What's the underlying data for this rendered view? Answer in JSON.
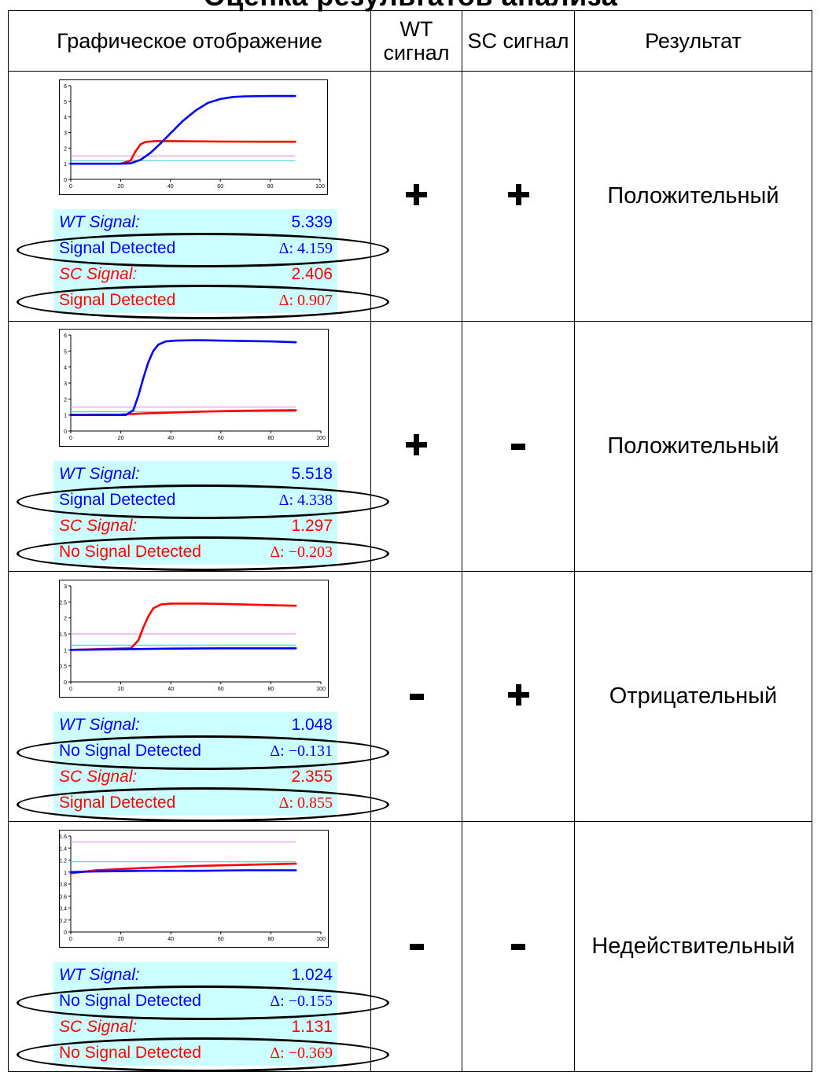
{
  "title": "Оценка результатов анализа",
  "headers": {
    "graph": "Графическое отображение",
    "wt": "WT сигнал",
    "sc": "SC сигнал",
    "result": "Результат"
  },
  "rows": [
    {
      "wt_symbol": "+",
      "sc_symbol": "+",
      "result": "Положительный",
      "wt_label": "WT Signal:",
      "wt_value": "5.339",
      "wt_status": "Signal Detected",
      "wt_delta": "Δ: 4.159",
      "sc_label": "SC Signal:",
      "sc_value": "2.406",
      "sc_status": "Signal Detected",
      "sc_delta": "Δ: 0.907"
    },
    {
      "wt_symbol": "+",
      "sc_symbol": "-",
      "result": "Положительный",
      "wt_label": "WT Signal:",
      "wt_value": "5.518",
      "wt_status": "Signal Detected",
      "wt_delta": "Δ: 4.338",
      "sc_label": "SC Signal:",
      "sc_value": "1.297",
      "sc_status": "No Signal Detected",
      "sc_delta": "Δ: −0.203"
    },
    {
      "wt_symbol": "-",
      "sc_symbol": "+",
      "result": "Отрицательный",
      "wt_label": "WT Signal:",
      "wt_value": "1.048",
      "wt_status": "No Signal Detected",
      "wt_delta": "Δ: −0.131",
      "sc_label": "SC Signal:",
      "sc_value": "2.355",
      "sc_status": "Signal Detected",
      "sc_delta": "Δ: 0.855"
    },
    {
      "wt_symbol": "-",
      "sc_symbol": "-",
      "result": "Недействительный",
      "wt_label": "WT Signal:",
      "wt_value": "1.024",
      "wt_status": "No Signal Detected",
      "wt_delta": "Δ: −0.155",
      "sc_label": "SC Signal:",
      "sc_value": "1.131",
      "sc_status": "No Signal Detected",
      "sc_delta": "Δ: −0.369"
    }
  ],
  "colors": {
    "wt": "#0000ff",
    "sc": "#ff0000",
    "panel": "#ccffff",
    "threshold_pink": "#e08ae0",
    "threshold_cyan": "#33cccc"
  },
  "chart_data": [
    {
      "type": "line",
      "xlim": [
        0,
        100
      ],
      "ylim": [
        0,
        6
      ],
      "x_ticks": [
        0,
        20,
        40,
        60,
        80,
        100
      ],
      "y_ticks": [
        0,
        1,
        2,
        3,
        4,
        5,
        6
      ],
      "thresholds": [
        1.5,
        1.2
      ],
      "series": [
        {
          "color": "#0000ff",
          "x": [
            0,
            20,
            24,
            28,
            32,
            36,
            40,
            45,
            50,
            55,
            60,
            65,
            70,
            80,
            90
          ],
          "y": [
            1.0,
            1.0,
            1.03,
            1.25,
            1.7,
            2.3,
            2.95,
            3.75,
            4.4,
            4.9,
            5.15,
            5.28,
            5.32,
            5.34,
            5.34
          ]
        },
        {
          "color": "#ff0000",
          "x": [
            0,
            20,
            24,
            26,
            28,
            30,
            34,
            40,
            60,
            80,
            90
          ],
          "y": [
            1.0,
            1.0,
            1.2,
            1.8,
            2.25,
            2.4,
            2.45,
            2.45,
            2.42,
            2.41,
            2.41
          ]
        }
      ]
    },
    {
      "type": "line",
      "xlim": [
        0,
        100
      ],
      "ylim": [
        0,
        6
      ],
      "x_ticks": [
        0,
        20,
        40,
        60,
        80,
        100
      ],
      "y_ticks": [
        0,
        1,
        2,
        3,
        4,
        5,
        6
      ],
      "thresholds": [
        1.5,
        1.2
      ],
      "series": [
        {
          "color": "#0000ff",
          "x": [
            0,
            22,
            25,
            27,
            29,
            31,
            33,
            35,
            38,
            42,
            50,
            60,
            80,
            90
          ],
          "y": [
            1.0,
            1.0,
            1.3,
            2.2,
            3.3,
            4.3,
            5.0,
            5.4,
            5.6,
            5.65,
            5.68,
            5.65,
            5.6,
            5.55
          ]
        },
        {
          "color": "#ff0000",
          "x": [
            0,
            20,
            30,
            40,
            50,
            60,
            70,
            80,
            90
          ],
          "y": [
            1.02,
            1.03,
            1.1,
            1.15,
            1.2,
            1.24,
            1.27,
            1.29,
            1.3
          ]
        }
      ]
    },
    {
      "type": "line",
      "xlim": [
        0,
        100
      ],
      "ylim": [
        0,
        3
      ],
      "x_ticks": [
        0,
        20,
        40,
        60,
        80,
        100
      ],
      "y_ticks": [
        0,
        0.5,
        1,
        1.5,
        2,
        2.5,
        3
      ],
      "thresholds": [
        1.5,
        1.15
      ],
      "series": [
        {
          "color": "#0000ff",
          "x": [
            0,
            20,
            40,
            60,
            80,
            90
          ],
          "y": [
            1.0,
            1.02,
            1.04,
            1.05,
            1.05,
            1.05
          ]
        },
        {
          "color": "#ff0000",
          "x": [
            0,
            24,
            27,
            29,
            31,
            33,
            36,
            40,
            50,
            60,
            80,
            90
          ],
          "y": [
            1.0,
            1.05,
            1.3,
            1.7,
            2.05,
            2.3,
            2.42,
            2.45,
            2.45,
            2.44,
            2.4,
            2.38
          ]
        }
      ]
    },
    {
      "type": "line",
      "xlim": [
        0,
        100
      ],
      "ylim": [
        0,
        1.6
      ],
      "x_ticks": [
        0,
        20,
        40,
        60,
        80,
        100
      ],
      "y_ticks": [
        0,
        0.2,
        0.4,
        0.6,
        0.8,
        1,
        1.2,
        1.4,
        1.6
      ],
      "thresholds": [
        1.5,
        1.17
      ],
      "series": [
        {
          "color": "#0000ff",
          "x": [
            0,
            10,
            30,
            50,
            70,
            90
          ],
          "y": [
            1.0,
            1.01,
            1.02,
            1.02,
            1.03,
            1.03
          ]
        },
        {
          "color": "#ff0000",
          "x": [
            0,
            10,
            30,
            50,
            70,
            90
          ],
          "y": [
            0.98,
            1.03,
            1.07,
            1.1,
            1.12,
            1.14
          ]
        }
      ]
    }
  ]
}
